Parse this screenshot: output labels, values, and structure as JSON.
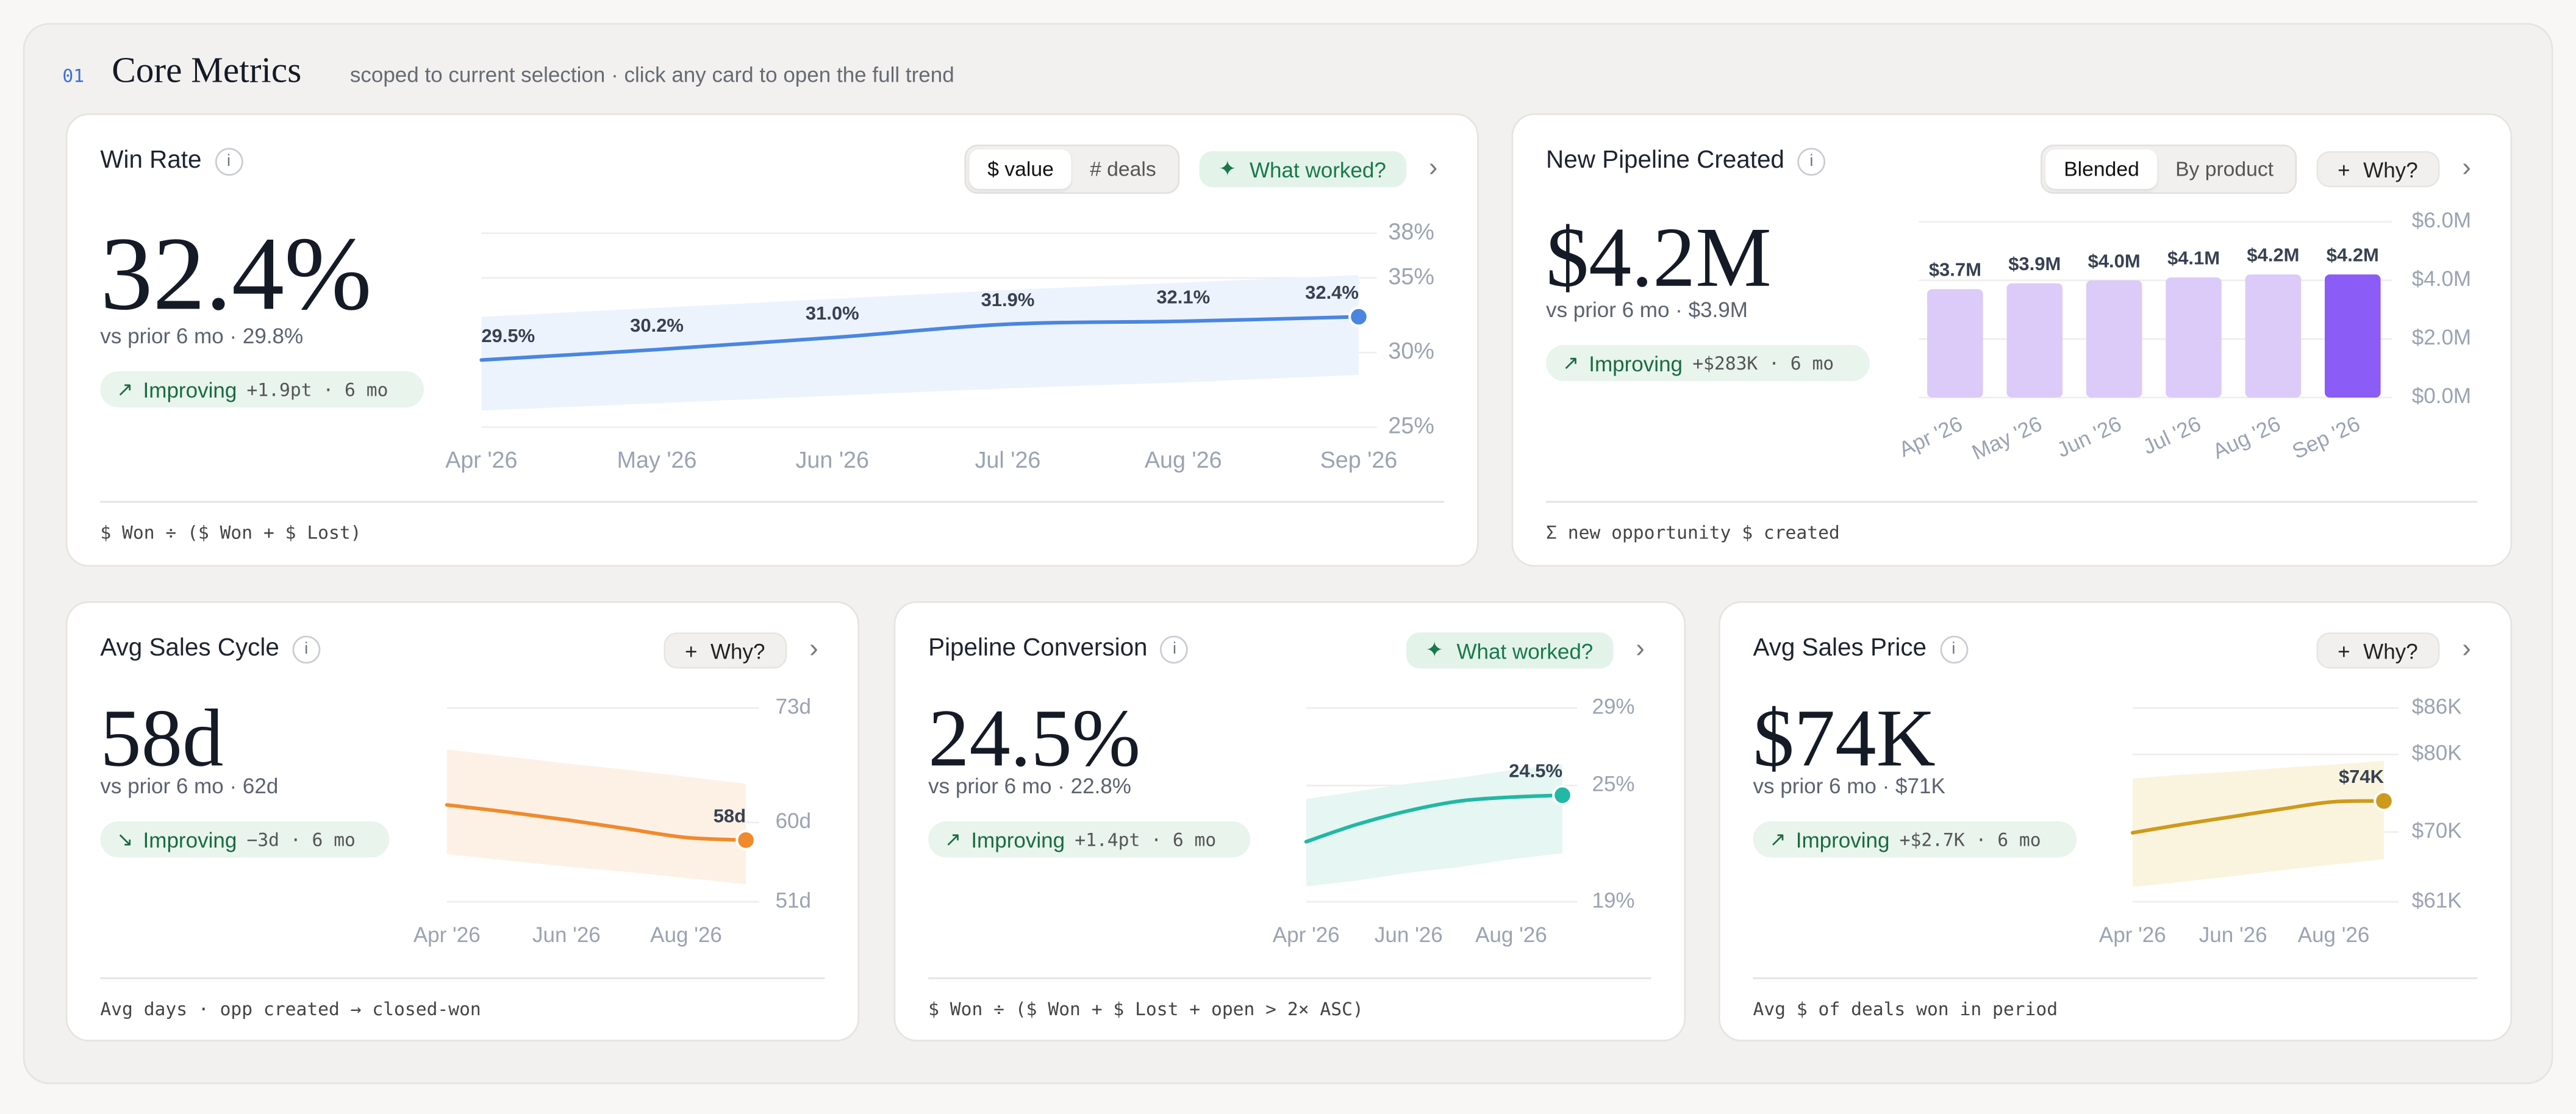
{
  "header": {
    "index": "01",
    "title": "Core Metrics",
    "subtitle": "scoped to current selection · click any card to open the full trend"
  },
  "cards": [
    {
      "title": "Win Rate",
      "info": "i",
      "toggle": [
        "$ value",
        "# deals"
      ],
      "action_icon": "✦",
      "action": "What worked?",
      "action_style": "green",
      "chevron": "›",
      "value": "32.4%",
      "comparison": "vs prior 6 mo · 29.8%",
      "trend": {
        "icon": "↗",
        "label": "Improving",
        "detail": "+1.9pt · 6 mo"
      },
      "formula": "$ Won ÷ ($ Won + $ Lost)",
      "chart": {
        "type": "line",
        "categories": [
          "Apr '26",
          "May '26",
          "Jun '26",
          "Jul '26",
          "Aug '26",
          "Sep '26"
        ],
        "values": [
          29.5,
          30.2,
          31.0,
          31.9,
          32.1,
          32.4
        ],
        "value_labels": [
          "29.5%",
          "30.2%",
          "31.0%",
          "31.9%",
          "32.1%",
          "32.4%"
        ],
        "band_upper": [
          32.4,
          33.0,
          33.6,
          34.2,
          34.7,
          35.2
        ],
        "band_lower": [
          26.1,
          26.6,
          27.1,
          27.6,
          28.0,
          28.5
        ],
        "ylim": [
          25,
          38
        ],
        "yticks": [
          {
            "value": 38,
            "label": "38%"
          },
          {
            "value": 35,
            "label": "35%"
          },
          {
            "value": 30,
            "label": "30%"
          },
          {
            "value": 25,
            "label": "25%"
          }
        ],
        "grid": true,
        "color": "#4a86e0",
        "band_color": "#edf3fd"
      }
    },
    {
      "title": "New Pipeline Created",
      "info": "i",
      "toggle": [
        "Blended",
        "By product"
      ],
      "action_icon": "+",
      "action": "Why?",
      "action_style": "neutral",
      "chevron": "›",
      "value": "$4.2M",
      "comparison": "vs prior 6 mo · $3.9M",
      "trend": {
        "icon": "↗",
        "label": "Improving",
        "detail": "+$283K · 6 mo"
      },
      "formula": "Σ new opportunity $ created",
      "chart": {
        "type": "bar",
        "categories": [
          "Apr '26",
          "May '26",
          "Jun '26",
          "Jul '26",
          "Aug '26",
          "Sep '26"
        ],
        "values": [
          3.7,
          3.9,
          4.0,
          4.1,
          4.2,
          4.2
        ],
        "value_labels": [
          "$3.7M",
          "$3.9M",
          "$4.0M",
          "$4.1M",
          "$4.2M",
          "$4.2M"
        ],
        "colors": [
          "#dccbf8",
          "#dccbf8",
          "#dccbf8",
          "#dccbf8",
          "#dccbf8",
          "#8b5cf6"
        ],
        "ylim": [
          0,
          6
        ],
        "yticks": [
          {
            "value": 6,
            "label": "$6.0M"
          },
          {
            "value": 4,
            "label": "$4.0M"
          },
          {
            "value": 2,
            "label": "$2.0M"
          },
          {
            "value": 0,
            "label": "$0.0M"
          }
        ],
        "grid": true
      }
    },
    {
      "title": "Avg Sales Cycle",
      "info": "i",
      "action_icon": "+",
      "action": "Why?",
      "action_style": "neutral",
      "chevron": "›",
      "value": "58d",
      "comparison": "vs prior 6 mo · 62d",
      "trend": {
        "icon": "↘",
        "label": "Improving",
        "detail": "−3d · 6 mo"
      },
      "formula": "Avg days · opp created → closed-won",
      "chart": {
        "type": "line",
        "categories": [
          "Apr '26",
          null,
          "Jun '26",
          null,
          "Aug '26",
          null
        ],
        "values": [
          62,
          61.2,
          60.3,
          59.3,
          58.3,
          58
        ],
        "value_labels": [
          null,
          null,
          null,
          null,
          null,
          "58d"
        ],
        "band_upper": [
          68.3,
          67.5,
          66.7,
          66.0,
          65.2,
          64.4
        ],
        "band_lower": [
          56.4,
          55.7,
          55.0,
          54.4,
          53.7,
          53.0
        ],
        "ylim": [
          51,
          73
        ],
        "yticks": [
          {
            "value": 73,
            "label": "73d"
          },
          {
            "value": 60,
            "label": "60d"
          },
          {
            "value": 51,
            "label": "51d"
          }
        ],
        "grid": true,
        "color": "#f08a2c",
        "band_color": "#fdf1e6"
      }
    },
    {
      "title": "Pipeline Conversion",
      "info": "i",
      "action_icon": "✦",
      "action": "What worked?",
      "action_style": "green",
      "chevron": "›",
      "value": "24.5%",
      "comparison": "vs prior 6 mo · 22.8%",
      "trend": {
        "icon": "↗",
        "label": "Improving",
        "detail": "+1.4pt · 6 mo"
      },
      "formula": "$ Won ÷ ($ Won + $ Lost + open > 2× ASC)",
      "chart": {
        "type": "line",
        "categories": [
          "Apr '26",
          null,
          "Jun '26",
          null,
          "Aug '26",
          null
        ],
        "values": [
          22.1,
          23.0,
          23.7,
          24.2,
          24.4,
          24.5
        ],
        "value_labels": [
          null,
          null,
          null,
          null,
          null,
          "24.5%"
        ],
        "band_upper": [
          24.3,
          24.7,
          25.1,
          25.4,
          25.8,
          26.1
        ],
        "band_lower": [
          19.8,
          20.1,
          20.5,
          20.8,
          21.2,
          21.5
        ],
        "ylim": [
          19,
          29
        ],
        "yticks": [
          {
            "value": 29,
            "label": "29%"
          },
          {
            "value": 25,
            "label": "25%"
          },
          {
            "value": 19,
            "label": "19%"
          }
        ],
        "grid": true,
        "color": "#21b8a5",
        "band_color": "#e6f6f2"
      }
    },
    {
      "title": "Avg Sales Price",
      "info": "i",
      "action_icon": "+",
      "action": "Why?",
      "action_style": "neutral",
      "chevron": "›",
      "value": "$74K",
      "comparison": "vs prior 6 mo · $71K",
      "trend": {
        "icon": "↗",
        "label": "Improving",
        "detail": "+$2.7K · 6 mo"
      },
      "formula": "Avg $ of deals won in period",
      "chart": {
        "type": "line",
        "categories": [
          "Apr '26",
          null,
          "Jun '26",
          null,
          "Aug '26",
          null
        ],
        "values": [
          69.9,
          71.0,
          72.0,
          73.0,
          73.9,
          74.0
        ],
        "value_labels": [
          null,
          null,
          null,
          null,
          null,
          "$74K"
        ],
        "band_upper": [
          76.9,
          77.4,
          77.8,
          78.3,
          78.7,
          79.2
        ],
        "band_lower": [
          62.9,
          63.6,
          64.3,
          65.1,
          65.8,
          66.5
        ],
        "ylim": [
          61,
          86
        ],
        "yticks": [
          {
            "value": 86,
            "label": "$86K"
          },
          {
            "value": 80,
            "label": "$80K"
          },
          {
            "value": 70,
            "label": "$70K"
          },
          {
            "value": 61,
            "label": "$61K"
          }
        ],
        "grid": true,
        "color": "#cf9a1b",
        "band_color": "#faf4df"
      }
    }
  ]
}
